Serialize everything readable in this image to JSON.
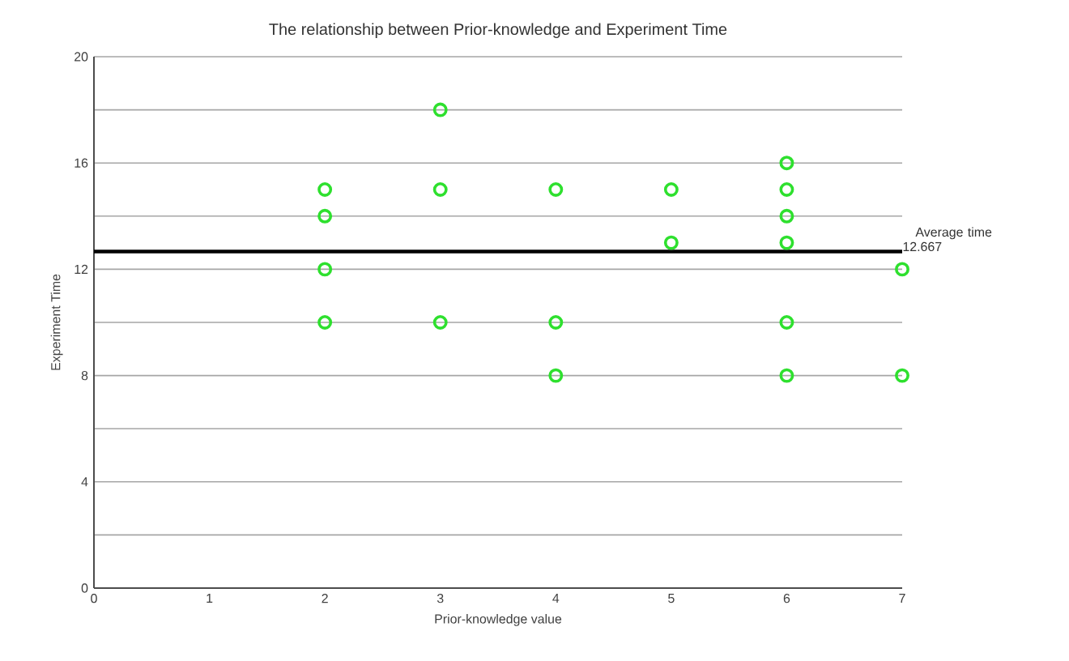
{
  "chart_data": {
    "type": "scatter",
    "title": "The relationship between Prior-knowledge and Experiment Time",
    "xlabel": "Prior-knowledge value",
    "ylabel": "Experiment Time",
    "series": [
      {
        "color": "#2ee02e",
        "x": [
          2,
          2,
          2,
          2,
          3,
          3,
          3,
          4,
          4,
          4,
          5,
          5,
          6,
          6,
          6,
          6,
          6,
          6,
          7,
          7
        ],
        "values": [
          15,
          14,
          12,
          10,
          18,
          15,
          10,
          15,
          10,
          8,
          15,
          13,
          16,
          15,
          14,
          13,
          10,
          8,
          12,
          8
        ]
      }
    ],
    "xlim": [
      0,
      7
    ],
    "xticks": [
      0,
      1,
      2,
      3,
      4,
      5,
      6,
      7
    ],
    "ylim": [
      0,
      20
    ],
    "yticks": [
      0,
      {
        "value": 2,
        "label": null
      },
      4,
      {
        "value": 6,
        "label": null
      },
      8,
      {
        "value": 10,
        "label": null
      },
      12,
      {
        "value": 14,
        "label": null
      },
      16,
      {
        "value": 18,
        "label": null
      },
      20
    ],
    "grid": "y",
    "marker": "circle",
    "ref_lines": [
      {
        "axis": "y",
        "value": 12.667,
        "label": "Average time 12.667",
        "color": "#000000",
        "line_style": "solid"
      }
    ]
  }
}
